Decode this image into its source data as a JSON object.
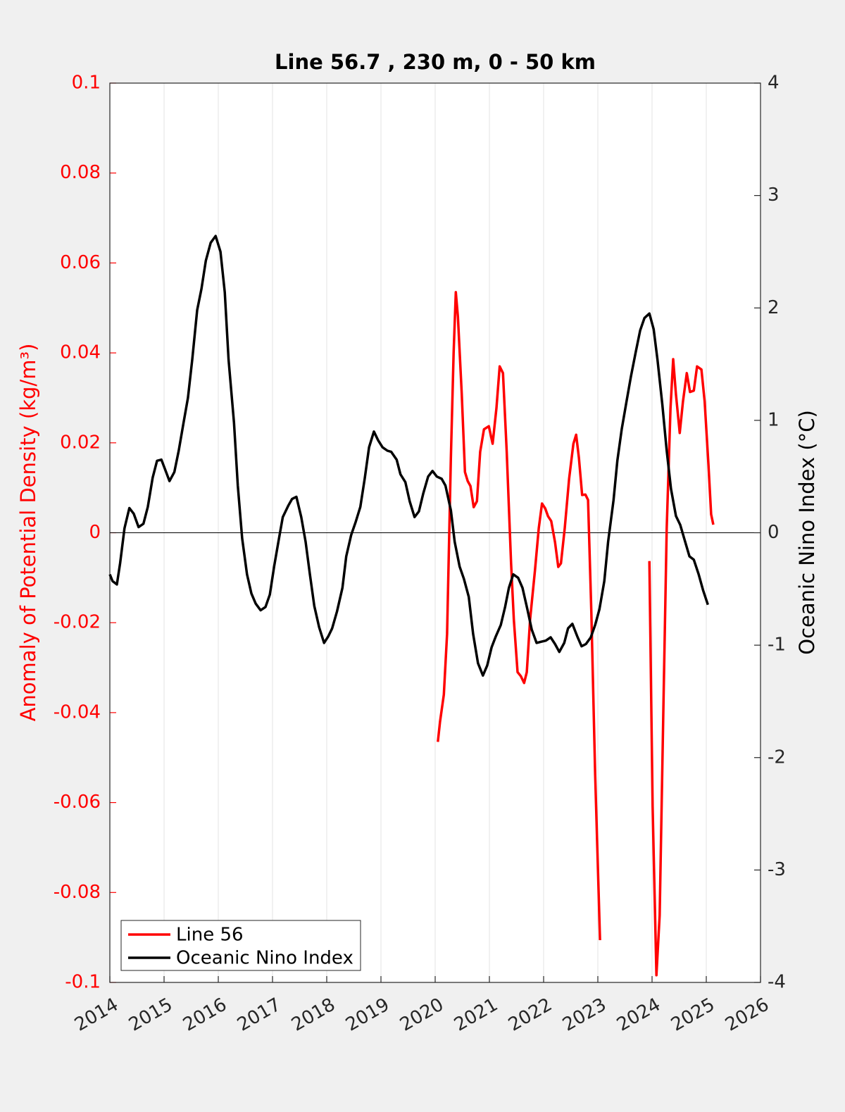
{
  "chart_data": {
    "type": "line",
    "title": "Line 56.7 , 230 m, 0 - 50 km",
    "ylabel": "Anomaly of Potential Density (kg/m³)",
    "y2label": "Oceanic Nino Index (°C)",
    "xlim": [
      2014,
      2026
    ],
    "xticks": [
      2014,
      2015,
      2016,
      2017,
      2018,
      2019,
      2020,
      2021,
      2022,
      2023,
      2024,
      2025,
      2026
    ],
    "ylim": [
      -0.1,
      0.1
    ],
    "yticks": [
      -0.1,
      -0.08,
      -0.06,
      -0.04,
      -0.02,
      0,
      0.02,
      0.04,
      0.06,
      0.08,
      0.1
    ],
    "y2lim": [
      -4,
      4
    ],
    "y2ticks": [
      -4,
      -3,
      -2,
      -1,
      0,
      1,
      2,
      3,
      4
    ],
    "grid": true,
    "legend": "lower left",
    "series": [
      {
        "name": "Line 56",
        "color": "#ff0000",
        "axis": "y",
        "x": [
          2020.05,
          2020.09,
          2020.16,
          2020.22,
          2020.29,
          2020.34,
          2020.38,
          2020.42,
          2020.49,
          2020.55,
          2020.6,
          2020.65,
          2020.71,
          2020.77,
          2020.83,
          2020.9,
          2020.99,
          2021.06,
          2021.13,
          2021.19,
          2021.25,
          2021.32,
          2021.4,
          2021.45,
          2021.52,
          2021.58,
          2021.64,
          2021.69,
          2021.75,
          2021.84,
          2021.91,
          2021.97,
          2022.03,
          2022.08,
          2022.14,
          2022.21,
          2022.27,
          2022.32,
          2022.39,
          2022.47,
          2022.55,
          2022.6,
          2022.65,
          2022.71,
          2022.77,
          2022.82,
          2022.88,
          2022.95,
          2023.04,
          null,
          2023.95,
          2024.01,
          2024.08,
          2024.14,
          2024.21,
          2024.27,
          2024.34,
          2024.39,
          2024.44,
          2024.51,
          2024.57,
          2024.64,
          2024.7,
          2024.77,
          2024.83,
          2024.91,
          2024.97,
          2025.04,
          2025.09,
          2025.13
        ],
        "values": [
          -0.0465,
          -0.042,
          -0.036,
          -0.0225,
          0.0167,
          0.04,
          0.0535,
          0.048,
          0.031,
          0.0135,
          0.0115,
          0.0104,
          0.0057,
          0.007,
          0.018,
          0.023,
          0.0237,
          0.0198,
          0.0277,
          0.037,
          0.0355,
          0.018,
          -0.0068,
          -0.0193,
          -0.031,
          -0.0319,
          -0.0334,
          -0.031,
          -0.0193,
          -0.0084,
          0.001,
          0.0065,
          0.0054,
          0.0037,
          0.0026,
          -0.0021,
          -0.0076,
          -0.0068,
          0.001,
          0.012,
          0.0198,
          0.0218,
          0.0167,
          0.0084,
          0.0085,
          0.0073,
          -0.0178,
          -0.0538,
          -0.0906,
          null,
          -0.0063,
          -0.0609,
          -0.0984,
          -0.0851,
          -0.0381,
          0.001,
          0.0277,
          0.0386,
          0.0308,
          0.0222,
          0.0292,
          0.0355,
          0.0313,
          0.0316,
          0.037,
          0.0363,
          0.0292,
          0.0151,
          0.0041,
          0.0018
        ]
      },
      {
        "name": "Oceanic Nino Index",
        "color": "#000000",
        "axis": "y2",
        "x": [
          2014.0,
          2014.05,
          2014.13,
          2014.19,
          2014.27,
          2014.36,
          2014.44,
          2014.53,
          2014.62,
          2014.7,
          2014.79,
          2014.87,
          2014.95,
          2015.03,
          2015.1,
          2015.19,
          2015.27,
          2015.36,
          2015.44,
          2015.52,
          2015.61,
          2015.69,
          2015.77,
          2015.86,
          2015.95,
          2016.04,
          2016.12,
          2016.19,
          2016.29,
          2016.36,
          2016.44,
          2016.53,
          2016.61,
          2016.69,
          2016.78,
          2016.87,
          2016.95,
          2017.03,
          2017.12,
          2017.19,
          2017.29,
          2017.36,
          2017.44,
          2017.53,
          2017.61,
          2017.69,
          2017.77,
          2017.86,
          2017.95,
          2018.03,
          2018.1,
          2018.19,
          2018.29,
          2018.36,
          2018.45,
          2018.53,
          2018.62,
          2018.7,
          2018.78,
          2018.87,
          2018.95,
          2019.03,
          2019.12,
          2019.19,
          2019.29,
          2019.36,
          2019.45,
          2019.53,
          2019.62,
          2019.7,
          2019.78,
          2019.87,
          2019.95,
          2020.03,
          2020.12,
          2020.19,
          2020.29,
          2020.36,
          2020.45,
          2020.53,
          2020.62,
          2020.7,
          2020.79,
          2020.88,
          2020.96,
          2021.04,
          2021.12,
          2021.21,
          2021.29,
          2021.36,
          2021.44,
          2021.53,
          2021.61,
          2021.7,
          2021.78,
          2021.87,
          2021.95,
          2022.04,
          2022.13,
          2022.21,
          2022.29,
          2022.38,
          2022.45,
          2022.53,
          2022.62,
          2022.7,
          2022.78,
          2022.87,
          2022.95,
          2023.03,
          2023.12,
          2023.19,
          2023.29,
          2023.36,
          2023.44,
          2023.53,
          2023.61,
          2023.7,
          2023.78,
          2023.86,
          2023.95,
          2024.03,
          2024.1,
          2024.19,
          2024.27,
          2024.35,
          2024.44,
          2024.52,
          2024.61,
          2024.69,
          2024.77,
          2024.86,
          2024.94,
          2025.03
        ],
        "values": [
          -0.37,
          -0.43,
          -0.46,
          -0.27,
          0.04,
          0.22,
          0.17,
          0.05,
          0.08,
          0.23,
          0.49,
          0.64,
          0.65,
          0.55,
          0.46,
          0.54,
          0.73,
          0.98,
          1.2,
          1.54,
          1.98,
          2.17,
          2.42,
          2.58,
          2.64,
          2.5,
          2.14,
          1.54,
          0.98,
          0.42,
          -0.05,
          -0.37,
          -0.54,
          -0.63,
          -0.69,
          -0.66,
          -0.55,
          -0.3,
          -0.05,
          0.14,
          0.24,
          0.3,
          0.32,
          0.14,
          -0.08,
          -0.37,
          -0.65,
          -0.84,
          -0.98,
          -0.92,
          -0.85,
          -0.7,
          -0.49,
          -0.21,
          -0.02,
          0.09,
          0.23,
          0.48,
          0.76,
          0.9,
          0.82,
          0.76,
          0.73,
          0.72,
          0.65,
          0.52,
          0.45,
          0.28,
          0.14,
          0.19,
          0.35,
          0.5,
          0.55,
          0.5,
          0.48,
          0.42,
          0.2,
          -0.08,
          -0.3,
          -0.41,
          -0.57,
          -0.9,
          -1.16,
          -1.27,
          -1.18,
          -1.02,
          -0.92,
          -0.82,
          -0.66,
          -0.49,
          -0.37,
          -0.4,
          -0.49,
          -0.68,
          -0.86,
          -0.98,
          -0.97,
          -0.96,
          -0.93,
          -0.99,
          -1.06,
          -0.98,
          -0.85,
          -0.81,
          -0.92,
          -1.01,
          -0.99,
          -0.93,
          -0.82,
          -0.68,
          -0.43,
          -0.08,
          0.29,
          0.64,
          0.92,
          1.17,
          1.39,
          1.61,
          1.8,
          1.91,
          1.95,
          1.81,
          1.54,
          1.14,
          0.73,
          0.39,
          0.15,
          0.07,
          -0.08,
          -0.21,
          -0.24,
          -0.37,
          -0.51,
          -0.64
        ]
      }
    ]
  }
}
